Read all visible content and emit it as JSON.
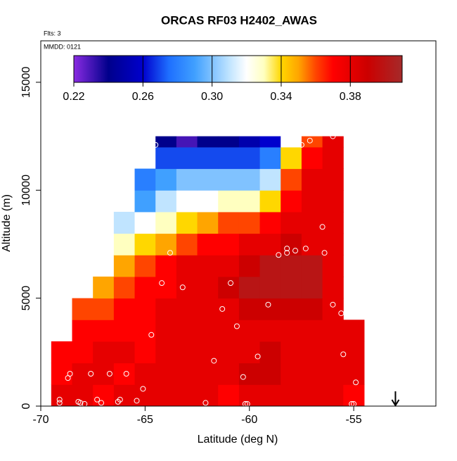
{
  "chart_data": {
    "type": "heatmap",
    "title": "ORCAS RF03 H2402_AWAS",
    "subtitle": "Flts: 3",
    "annotation": "MMDD: 0121",
    "x_label": "Latitude (deg N)",
    "y_label": "Altitude (m)",
    "xlim": [
      -70,
      -51.06
    ],
    "xticks": [
      -70,
      -65,
      -60,
      -55
    ],
    "ylim": [
      0,
      16920
    ],
    "yticks": [
      0,
      5000,
      10000,
      15000
    ],
    "x_edges": [
      -69.5,
      -68.5,
      -67.5,
      -66.5,
      -65.5,
      -64.5,
      -63.5,
      -62.5,
      -61.5,
      -60.5,
      -59.5,
      -58.5,
      -57.5,
      -56.5,
      -55.5,
      -54.5
    ],
    "y_edges": [
      0,
      1000,
      2000,
      3000,
      4000,
      5000,
      6000,
      7000,
      8000,
      9000,
      10000,
      11000,
      12000,
      12500
    ],
    "values": [
      [
        0.38,
        0.38,
        0.37,
        0.38,
        0.38,
        0.38,
        0.38,
        0.38,
        0.37,
        0.38,
        0.38,
        0.38,
        0.38,
        0.38,
        0.37
      ],
      [
        0.37,
        0.38,
        0.38,
        0.37,
        0.38,
        0.38,
        0.38,
        0.38,
        0.38,
        0.39,
        0.39,
        0.38,
        0.38,
        0.38,
        0.38
      ],
      [
        0.37,
        0.37,
        0.38,
        0.38,
        0.37,
        0.38,
        0.38,
        0.38,
        0.38,
        0.38,
        0.39,
        0.38,
        0.38,
        0.38,
        0.38
      ],
      [
        null,
        0.37,
        0.37,
        0.37,
        0.37,
        0.38,
        0.38,
        0.38,
        0.38,
        0.38,
        0.38,
        0.38,
        0.38,
        0.38,
        0.38
      ],
      [
        null,
        0.36,
        0.36,
        0.37,
        0.37,
        0.38,
        0.38,
        0.38,
        0.38,
        0.39,
        0.39,
        0.39,
        0.39,
        0.38,
        null
      ],
      [
        null,
        null,
        0.35,
        0.36,
        0.37,
        0.37,
        0.38,
        0.38,
        0.39,
        0.4,
        0.4,
        0.4,
        0.4,
        0.38,
        null
      ],
      [
        null,
        null,
        null,
        0.35,
        0.36,
        0.37,
        0.38,
        0.38,
        0.38,
        0.39,
        0.4,
        0.4,
        0.4,
        0.38,
        null
      ],
      [
        null,
        null,
        null,
        0.33,
        0.34,
        0.35,
        0.36,
        0.37,
        0.37,
        0.38,
        0.38,
        0.39,
        0.38,
        0.38,
        null
      ],
      [
        null,
        null,
        null,
        0.31,
        0.32,
        0.33,
        0.34,
        0.35,
        0.36,
        0.36,
        0.37,
        0.38,
        0.38,
        0.38,
        null
      ],
      [
        null,
        null,
        null,
        null,
        0.29,
        0.31,
        0.32,
        0.32,
        0.33,
        0.33,
        0.34,
        0.37,
        0.38,
        0.38,
        null
      ],
      [
        null,
        null,
        null,
        null,
        0.28,
        0.29,
        0.3,
        0.3,
        0.3,
        0.3,
        0.31,
        0.36,
        0.38,
        0.38,
        null
      ],
      [
        null,
        null,
        null,
        null,
        null,
        0.27,
        0.27,
        0.27,
        0.27,
        0.27,
        0.28,
        0.34,
        0.37,
        0.38,
        null
      ],
      [
        null,
        null,
        null,
        null,
        null,
        0.24,
        0.23,
        0.24,
        0.24,
        0.25,
        0.26,
        0.32,
        0.36,
        0.38,
        null
      ]
    ],
    "samples": {
      "x": [
        -69.1,
        -69.1,
        -68.6,
        -68.7,
        -68.2,
        -68.1,
        -67.9,
        -67.6,
        -67.3,
        -67.1,
        -66.7,
        -66.3,
        -66.2,
        -65.9,
        -65.4,
        -65.1,
        -64.7,
        -64.2,
        -63.8,
        -63.2,
        -62.1,
        -61.7,
        -61.3,
        -60.9,
        -60.6,
        -60.3,
        -60.2,
        -60.1,
        -59.6,
        -59.1,
        -58.6,
        -58.2,
        -58.2,
        -57.8,
        -57.3,
        -56.5,
        -56.4,
        -56.0,
        -55.6,
        -55.5,
        -55.1,
        -55.0,
        -54.9,
        -64.5,
        -58.2,
        -57.7,
        -57.5,
        -57.1,
        -56.0
      ],
      "y": [
        300,
        150,
        1500,
        1300,
        200,
        150,
        100,
        1500,
        300,
        150,
        1500,
        200,
        300,
        1500,
        250,
        800,
        3300,
        5700,
        7100,
        5500,
        150,
        2100,
        4500,
        5700,
        3700,
        1350,
        100,
        100,
        2300,
        4700,
        7000,
        7300,
        7100,
        7200,
        7300,
        8300,
        7100,
        4700,
        4300,
        2400,
        100,
        100,
        1100,
        12100,
        12200,
        12200,
        12100,
        12300,
        12500
      ],
      "color": "#ffffff"
    },
    "marker_x": -53,
    "colorbar": {
      "lim": [
        0.22,
        0.41
      ],
      "ticks": [
        0.22,
        0.26,
        {
          "value": 0.3,
          "label": "0.30"
        },
        0.34,
        0.38
      ],
      "stops": [
        [
          0.22,
          "#8a2be2"
        ],
        [
          0.24,
          "#00008b"
        ],
        [
          0.26,
          "#0000cd"
        ],
        [
          0.275,
          "#1e6fff"
        ],
        [
          0.29,
          "#40a0ff"
        ],
        [
          0.31,
          "#c0e4ff"
        ],
        [
          0.32,
          "#ffffff"
        ],
        [
          0.33,
          "#ffffc0"
        ],
        [
          0.34,
          "#ffd700"
        ],
        [
          0.35,
          "#ffa500"
        ],
        [
          0.36,
          "#ff4500"
        ],
        [
          0.37,
          "#ff0000"
        ],
        [
          0.39,
          "#cc0000"
        ],
        [
          0.41,
          "#a52a2a"
        ]
      ]
    }
  }
}
